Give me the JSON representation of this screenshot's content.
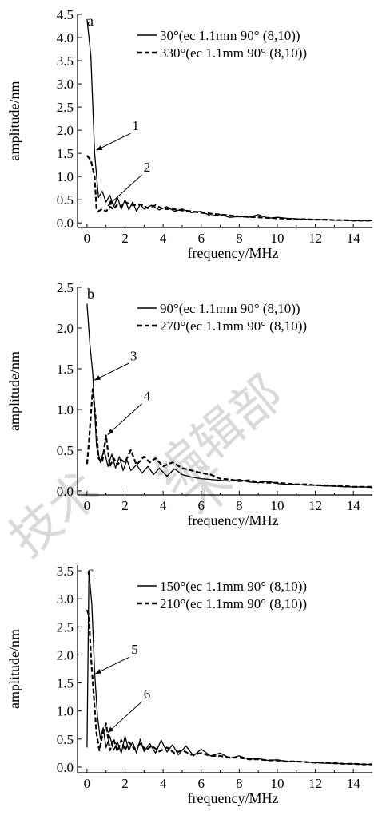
{
  "watermark": [
    "技术",
    "编辑部",
    "术"
  ],
  "chart_data": [
    {
      "type": "line",
      "panel_label": "a",
      "xlabel": "frequency/MHz",
      "ylabel": "amplitude/nm",
      "xlim": [
        -0.5,
        15
      ],
      "ylim": [
        -0.1,
        4.5
      ],
      "xticks": [
        0,
        2,
        4,
        6,
        8,
        10,
        12,
        14
      ],
      "yticks": [
        0.0,
        0.5,
        1.0,
        1.5,
        2.0,
        2.5,
        3.0,
        3.5,
        4.0,
        4.5
      ],
      "ytick_labels": [
        "0.0",
        "0.5",
        "1.0",
        "1.5",
        "2.0",
        "2.5",
        "3.0",
        "3.5",
        "4.0",
        "4.5"
      ],
      "legend_position": "top-right",
      "series": [
        {
          "name": "30°(ec 1.1mm 90° (8,10))",
          "style": "solid",
          "x": [
            0,
            0.2,
            0.4,
            0.6,
            0.8,
            1.0,
            1.2,
            1.4,
            1.6,
            1.8,
            2.0,
            2.2,
            2.4,
            2.6,
            2.8,
            3.0,
            3.4,
            3.8,
            4.2,
            4.6,
            5.0,
            5.5,
            6.0,
            6.5,
            7.0,
            7.5,
            8.0,
            8.5,
            9.0,
            9.5,
            10.0,
            10.5,
            11.0,
            11.5,
            12.0,
            12.5,
            13.0,
            13.5,
            14.0,
            14.5,
            15.0
          ],
          "y": [
            4.4,
            3.6,
            1.5,
            0.55,
            0.68,
            0.45,
            0.6,
            0.35,
            0.55,
            0.3,
            0.5,
            0.28,
            0.45,
            0.25,
            0.4,
            0.3,
            0.38,
            0.28,
            0.35,
            0.25,
            0.3,
            0.22,
            0.25,
            0.15,
            0.18,
            0.12,
            0.14,
            0.12,
            0.18,
            0.1,
            0.12,
            0.1,
            0.09,
            0.08,
            0.07,
            0.07,
            0.06,
            0.06,
            0.05,
            0.05,
            0.05
          ]
        },
        {
          "name": "330°(ec 1.1mm 90° (8,10))",
          "style": "dashed",
          "x": [
            0,
            0.2,
            0.4,
            0.5,
            0.6,
            0.8,
            1.0,
            1.2,
            1.4,
            1.6,
            1.8,
            2.0,
            2.4,
            2.8,
            3.2,
            3.6,
            4.0,
            4.5,
            5.0,
            5.5,
            6.0,
            6.5,
            7.0,
            7.5,
            8.0,
            8.5,
            9.0,
            9.5,
            10.0,
            10.5,
            11.0,
            11.5,
            12.0,
            12.5,
            13.0,
            13.5,
            14.0,
            14.5,
            15.0
          ],
          "y": [
            1.45,
            1.35,
            1.0,
            0.3,
            0.25,
            0.3,
            0.25,
            0.35,
            0.3,
            0.4,
            0.35,
            0.45,
            0.38,
            0.4,
            0.32,
            0.38,
            0.3,
            0.3,
            0.27,
            0.25,
            0.22,
            0.2,
            0.18,
            0.16,
            0.14,
            0.13,
            0.12,
            0.11,
            0.1,
            0.09,
            0.08,
            0.08,
            0.07,
            0.07,
            0.06,
            0.06,
            0.05,
            0.05,
            0.05
          ]
        }
      ],
      "annotations": [
        {
          "text": "1",
          "x": 0.4,
          "y": 1.55
        },
        {
          "text": "2",
          "x": 1.0,
          "y": 0.35
        }
      ]
    },
    {
      "type": "line",
      "panel_label": "b",
      "xlabel": "frequency/MHz",
      "ylabel": "amplitude/nm",
      "xlim": [
        -0.5,
        15
      ],
      "ylim": [
        -0.05,
        2.5
      ],
      "xticks": [
        0,
        2,
        4,
        6,
        8,
        10,
        12,
        14
      ],
      "yticks": [
        0.0,
        0.5,
        1.0,
        1.5,
        2.0,
        2.5
      ],
      "ytick_labels": [
        "0.0",
        "0.5",
        "1.0",
        "1.5",
        "2.0",
        "2.5"
      ],
      "legend_position": "top-right",
      "series": [
        {
          "name": "90°(ec 1.1mm 90° (8,10))",
          "style": "solid",
          "x": [
            0,
            0.15,
            0.3,
            0.5,
            0.7,
            0.9,
            1.1,
            1.3,
            1.5,
            1.7,
            1.9,
            2.1,
            2.3,
            2.6,
            2.9,
            3.2,
            3.5,
            3.8,
            4.2,
            4.6,
            5.0,
            5.5,
            6.0,
            6.5,
            7.0,
            7.5,
            8.0,
            8.5,
            9.0,
            9.5,
            10.0,
            10.5,
            11.0,
            11.5,
            12.0,
            12.5,
            13.0,
            13.5,
            14.0,
            14.5,
            15.0
          ],
          "y": [
            2.3,
            1.8,
            1.45,
            0.55,
            0.35,
            0.5,
            0.3,
            0.45,
            0.28,
            0.42,
            0.25,
            0.38,
            0.25,
            0.32,
            0.22,
            0.3,
            0.2,
            0.28,
            0.18,
            0.27,
            0.2,
            0.17,
            0.15,
            0.14,
            0.13,
            0.12,
            0.14,
            0.11,
            0.1,
            0.12,
            0.09,
            0.08,
            0.08,
            0.07,
            0.07,
            0.06,
            0.06,
            0.05,
            0.05,
            0.05,
            0.04
          ]
        },
        {
          "name": "270°(ec 1.1mm 90° (8,10))",
          "style": "dashed",
          "x": [
            0,
            0.1,
            0.3,
            0.45,
            0.6,
            0.8,
            1.0,
            1.2,
            1.4,
            1.6,
            1.8,
            2.0,
            2.3,
            2.6,
            3.0,
            3.3,
            3.6,
            4.0,
            4.5,
            5.0,
            5.5,
            6.0,
            6.5,
            7.0,
            7.5,
            8.0,
            8.5,
            9.0,
            9.5,
            10.0,
            10.5,
            11.0,
            11.5,
            12.0,
            12.5,
            13.0,
            13.5,
            14.0,
            14.5,
            15.0
          ],
          "y": [
            0.33,
            0.6,
            1.25,
            0.9,
            0.4,
            0.35,
            0.68,
            0.3,
            0.4,
            0.32,
            0.38,
            0.35,
            0.5,
            0.32,
            0.42,
            0.35,
            0.4,
            0.3,
            0.35,
            0.28,
            0.25,
            0.22,
            0.2,
            0.15,
            0.14,
            0.12,
            0.13,
            0.11,
            0.1,
            0.1,
            0.09,
            0.08,
            0.08,
            0.07,
            0.07,
            0.06,
            0.06,
            0.05,
            0.05,
            0.05
          ]
        }
      ],
      "annotations": [
        {
          "text": "3",
          "x": 0.3,
          "y": 1.35
        },
        {
          "text": "4",
          "x": 1.0,
          "y": 0.68
        }
      ]
    },
    {
      "type": "line",
      "panel_label": "c",
      "xlabel": "frequency/MHz",
      "ylabel": "amplitude/nm",
      "xlim": [
        -0.5,
        15
      ],
      "ylim": [
        -0.1,
        3.6
      ],
      "xticks": [
        0,
        2,
        4,
        6,
        8,
        10,
        12,
        14
      ],
      "yticks": [
        0.0,
        0.5,
        1.0,
        1.5,
        2.0,
        2.5,
        3.0,
        3.5
      ],
      "ytick_labels": [
        "0.0",
        "0.5",
        "1.0",
        "1.5",
        "2.0",
        "2.5",
        "3.0",
        "3.5"
      ],
      "legend_position": "top-right",
      "series": [
        {
          "name": "150°(ec 1.1mm 90° (8,10))",
          "style": "solid",
          "x": [
            0,
            0.1,
            0.25,
            0.4,
            0.55,
            0.7,
            0.85,
            1.0,
            1.2,
            1.4,
            1.6,
            1.8,
            2.0,
            2.2,
            2.4,
            2.6,
            2.8,
            3.0,
            3.3,
            3.6,
            3.9,
            4.2,
            4.5,
            4.8,
            5.2,
            5.6,
            6.0,
            6.5,
            7.0,
            7.5,
            8.0,
            8.5,
            9.0,
            9.5,
            10.0,
            10.5,
            11.0,
            11.5,
            12.0,
            12.5,
            13.0,
            13.5,
            14.0,
            14.5,
            15.0
          ],
          "y": [
            0.35,
            3.5,
            2.9,
            1.7,
            0.9,
            0.5,
            0.7,
            0.35,
            0.55,
            0.3,
            0.45,
            0.25,
            0.55,
            0.3,
            0.45,
            0.25,
            0.5,
            0.28,
            0.42,
            0.25,
            0.48,
            0.27,
            0.4,
            0.22,
            0.38,
            0.2,
            0.32,
            0.2,
            0.25,
            0.16,
            0.2,
            0.14,
            0.15,
            0.12,
            0.13,
            0.1,
            0.1,
            0.09,
            0.08,
            0.07,
            0.07,
            0.06,
            0.06,
            0.05,
            0.05
          ]
        },
        {
          "name": "210°(ec 1.1mm 90° (8,10))",
          "style": "dashed",
          "x": [
            0,
            0.1,
            0.2,
            0.35,
            0.5,
            0.65,
            0.8,
            1.0,
            1.2,
            1.4,
            1.6,
            1.8,
            2.0,
            2.2,
            2.5,
            2.8,
            3.1,
            3.4,
            3.8,
            4.2,
            4.6,
            5.0,
            5.5,
            6.0,
            6.5,
            7.0,
            7.5,
            8.0,
            8.5,
            9.0,
            9.5,
            10.0,
            10.5,
            11.0,
            11.5,
            12.0,
            12.5,
            13.0,
            13.5,
            14.0,
            14.5,
            15.0
          ],
          "y": [
            2.8,
            2.7,
            2.0,
            1.3,
            0.6,
            0.3,
            0.55,
            0.78,
            0.3,
            0.5,
            0.28,
            0.48,
            0.3,
            0.45,
            0.32,
            0.42,
            0.3,
            0.38,
            0.28,
            0.35,
            0.25,
            0.3,
            0.22,
            0.25,
            0.2,
            0.2,
            0.17,
            0.17,
            0.14,
            0.14,
            0.12,
            0.12,
            0.1,
            0.1,
            0.09,
            0.08,
            0.08,
            0.07,
            0.06,
            0.06,
            0.05,
            0.05
          ]
        }
      ],
      "annotations": [
        {
          "text": "5",
          "x": 0.35,
          "y": 1.65
        },
        {
          "text": "6",
          "x": 1.0,
          "y": 0.6
        }
      ]
    }
  ]
}
